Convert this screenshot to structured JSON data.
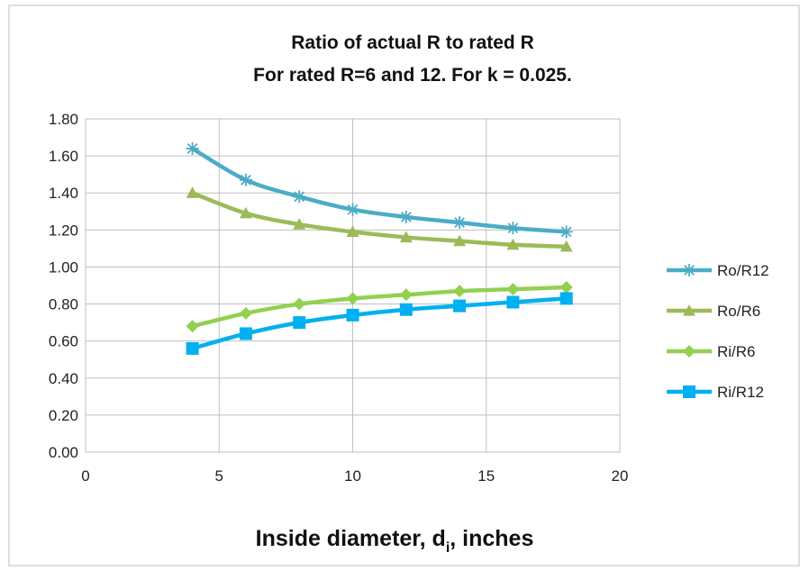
{
  "chart_data": {
    "type": "line",
    "title_line1": "Ratio of actual R to rated R",
    "title_line2": "For rated R=6 and 12. For k = 0.025.",
    "xlabel_main": "Inside diameter, d",
    "xlabel_sub": "i",
    "xlabel_tail": ", inches",
    "ylabel": "",
    "xlim": [
      0,
      20
    ],
    "ylim": [
      0,
      1.8
    ],
    "x_ticks": [
      "0",
      "5",
      "10",
      "15",
      "20"
    ],
    "y_ticks": [
      "0.00",
      "0.20",
      "0.40",
      "0.60",
      "0.80",
      "1.00",
      "1.20",
      "1.40",
      "1.60",
      "1.80"
    ],
    "grid": true,
    "legend_position": "right",
    "x": [
      4,
      6,
      8,
      10,
      12,
      14,
      16,
      18
    ],
    "series": [
      {
        "name": "Ro/R12",
        "color": "#4bacc6",
        "marker": "star",
        "values": [
          1.64,
          1.47,
          1.38,
          1.31,
          1.27,
          1.24,
          1.21,
          1.19
        ]
      },
      {
        "name": "Ro/R6",
        "color": "#9bbb59",
        "marker": "triangle",
        "values": [
          1.4,
          1.29,
          1.23,
          1.19,
          1.16,
          1.14,
          1.12,
          1.11
        ]
      },
      {
        "name": "Ri/R6",
        "color": "#92d050",
        "marker": "diamond",
        "values": [
          0.68,
          0.75,
          0.8,
          0.83,
          0.85,
          0.87,
          0.88,
          0.89
        ]
      },
      {
        "name": "Ri/R12",
        "color": "#00b0f0",
        "marker": "square",
        "values": [
          0.56,
          0.64,
          0.7,
          0.74,
          0.77,
          0.79,
          0.81,
          0.83
        ]
      }
    ]
  }
}
